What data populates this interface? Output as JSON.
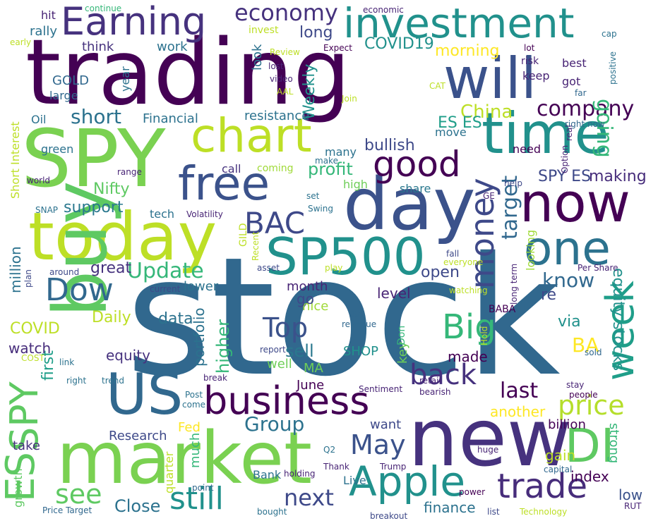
{
  "words": [
    {
      "text": "stock",
      "color": "#31688e"
    },
    {
      "text": "trading",
      "color": "#440154"
    },
    {
      "text": "SPY",
      "color": "#7ad151"
    },
    {
      "text": "day",
      "color": "#3b528b"
    },
    {
      "text": "market",
      "color": "#7ad151"
    },
    {
      "text": "new",
      "color": "#46327e"
    },
    {
      "text": "today",
      "color": "#bddf26"
    },
    {
      "text": "will",
      "color": "#3b528b"
    },
    {
      "text": "time",
      "color": "#21918c"
    },
    {
      "text": "buy",
      "color": "#5ec962"
    },
    {
      "text": "now",
      "color": "#440154"
    },
    {
      "text": "SP500",
      "color": "#21918c"
    },
    {
      "text": "investment",
      "color": "#21918c"
    },
    {
      "text": "free",
      "color": "#3b528b"
    },
    {
      "text": "chart",
      "color": "#bddf26"
    },
    {
      "text": "one",
      "color": "#2c728e"
    },
    {
      "text": "US",
      "color": "#31688e"
    },
    {
      "text": "DI",
      "color": "#5ec962"
    },
    {
      "text": "Earning",
      "color": "#46327e"
    },
    {
      "text": "business",
      "color": "#440154"
    },
    {
      "text": "Apple",
      "color": "#21918c"
    },
    {
      "text": "ES",
      "color": "#5ec962"
    },
    {
      "text": "SPY",
      "color": "#5ec962"
    },
    {
      "text": "good",
      "color": "#440154"
    },
    {
      "text": "trade",
      "color": "#472d7b"
    },
    {
      "text": "week",
      "color": "#1f9e89"
    },
    {
      "text": "Big",
      "color": "#35b779"
    },
    {
      "text": "money",
      "color": "#3e4989"
    },
    {
      "text": "BAC",
      "color": "#3e4989"
    },
    {
      "text": "back",
      "color": "#46327e"
    },
    {
      "text": "still",
      "color": "#21918c"
    },
    {
      "text": "Dow",
      "color": "#31688e"
    },
    {
      "text": "price",
      "color": "#b5de2b"
    },
    {
      "text": "Top",
      "color": "#3b528b"
    },
    {
      "text": "economy",
      "color": "#46327e"
    },
    {
      "text": "company",
      "color": "#440154"
    },
    {
      "text": "going",
      "color": "#35b779"
    },
    {
      "text": "May",
      "color": "#3b528b"
    },
    {
      "text": "last",
      "color": "#440154"
    },
    {
      "text": "Update",
      "color": "#35b779"
    },
    {
      "text": "see",
      "color": "#5ec962"
    },
    {
      "text": "next",
      "color": "#3e4989"
    },
    {
      "text": "target",
      "color": "#31688e"
    },
    {
      "text": "China",
      "color": "#bddf26"
    },
    {
      "text": "short",
      "color": "#2c728e"
    },
    {
      "text": "Group",
      "color": "#2c728e"
    },
    {
      "text": "know",
      "color": "#31688e"
    },
    {
      "text": "BA",
      "color": "#fde725"
    },
    {
      "text": "Close",
      "color": "#2c728e"
    },
    {
      "text": "equity stocks",
      "color": "#21918c"
    },
    {
      "text": "COVID19",
      "color": "#21918c"
    },
    {
      "text": "Weekly",
      "color": "#21918c"
    },
    {
      "text": "bullish",
      "color": "#3e4989"
    },
    {
      "text": "profit",
      "color": "#35b779"
    },
    {
      "text": "support",
      "color": "#2a788e"
    },
    {
      "text": "Nifty",
      "color": "#5ec962"
    },
    {
      "text": "higher",
      "color": "#35b779"
    },
    {
      "text": "long",
      "color": "#3e4989"
    },
    {
      "text": "morning",
      "color": "#fde725"
    },
    {
      "text": "Financial",
      "color": "#2c728e"
    },
    {
      "text": "resistance",
      "color": "#2c728e"
    },
    {
      "text": "ES ES",
      "color": "#1f9e89"
    },
    {
      "text": "SPY ES",
      "color": "#3e4989"
    },
    {
      "text": "making",
      "color": "#472d7b"
    },
    {
      "text": "great",
      "color": "#46327e"
    },
    {
      "text": "lower",
      "color": "#2c728e"
    },
    {
      "text": "data",
      "color": "#2c728e"
    },
    {
      "text": "Daily",
      "color": "#bddf26"
    },
    {
      "text": "COVID",
      "color": "#bddf26"
    },
    {
      "text": "million",
      "color": "#2c728e"
    },
    {
      "text": "watch",
      "color": "#472d7b"
    },
    {
      "text": "equity",
      "color": "#46327e"
    },
    {
      "text": "first",
      "color": "#1f9e89"
    },
    {
      "text": "portfolio",
      "color": "#2c728e"
    },
    {
      "text": "sell",
      "color": "#2a788e"
    },
    {
      "text": "open",
      "color": "#3e4989"
    },
    {
      "text": "re",
      "color": "#3e4989"
    },
    {
      "text": "via",
      "color": "#21918c"
    },
    {
      "text": "level",
      "color": "#482475"
    },
    {
      "text": "month",
      "color": "#482475"
    },
    {
      "text": "nice",
      "color": "#a0da39"
    },
    {
      "text": "go",
      "color": "#3e4989"
    },
    {
      "text": "SHOP",
      "color": "#21918c"
    },
    {
      "text": "made",
      "color": "#440154"
    },
    {
      "text": "key",
      "color": "#6ece58"
    },
    {
      "text": "well",
      "color": "#6ece58"
    },
    {
      "text": "MA",
      "color": "#6ece58"
    },
    {
      "text": "June",
      "color": "#440154"
    },
    {
      "text": "want",
      "color": "#3e4989"
    },
    {
      "text": "another",
      "color": "#fde725"
    },
    {
      "text": "billion",
      "color": "#440154"
    },
    {
      "text": "strong",
      "color": "#35b779"
    },
    {
      "text": "index",
      "color": "#440154"
    },
    {
      "text": "gain",
      "color": "#bddf26"
    },
    {
      "text": "low",
      "color": "#3b528b"
    },
    {
      "text": "finance",
      "color": "#2c728e"
    },
    {
      "text": "Fed",
      "color": "#fde725"
    },
    {
      "text": "much",
      "color": "#35b779"
    },
    {
      "text": "Research",
      "color": "#3e4989"
    },
    {
      "text": "take",
      "color": "#46327e"
    },
    {
      "text": "growth",
      "color": "#5ec962"
    },
    {
      "text": "Bank",
      "color": "#2c728e"
    },
    {
      "text": "Live",
      "color": "#2c728e"
    },
    {
      "text": "quarter",
      "color": "#bddf26"
    },
    {
      "text": "rally",
      "color": "#2c728e"
    },
    {
      "text": "think",
      "color": "#46327e"
    },
    {
      "text": "work",
      "color": "#2c728e"
    },
    {
      "text": "GOLD",
      "color": "#31688e"
    },
    {
      "text": "large",
      "color": "#31688e"
    },
    {
      "text": "year",
      "color": "#2c728e"
    },
    {
      "text": "Oil",
      "color": "#2c728e"
    },
    {
      "text": "green",
      "color": "#2c728e"
    },
    {
      "text": "tech",
      "color": "#2c728e"
    },
    {
      "text": "call",
      "color": "#46327e"
    },
    {
      "text": "coming",
      "color": "#a0da39"
    },
    {
      "text": "high",
      "color": "#6ece58"
    },
    {
      "text": "share",
      "color": "#2a788e"
    },
    {
      "text": "look",
      "color": "#2c728e"
    },
    {
      "text": "need",
      "color": "#440154"
    },
    {
      "text": "best",
      "color": "#482475"
    },
    {
      "text": "got",
      "color": "#482475"
    },
    {
      "text": "keep",
      "color": "#482475"
    },
    {
      "text": "risk",
      "color": "#482475"
    },
    {
      "text": "looking",
      "color": "#a0da39"
    },
    {
      "text": "hit",
      "color": "#482475"
    },
    {
      "text": "continue",
      "color": "#35b779"
    },
    {
      "text": "economic",
      "color": "#482475"
    },
    {
      "text": "invest",
      "color": "#bddf26"
    },
    {
      "text": "Expect",
      "color": "#440154"
    },
    {
      "text": "lot",
      "color": "#440154"
    },
    {
      "text": "early",
      "color": "#bddf26"
    },
    {
      "text": "cap",
      "color": "#2c728e"
    },
    {
      "text": "positive",
      "color": "#2c728e"
    },
    {
      "text": "Review",
      "color": "#bddf26"
    },
    {
      "text": "lost",
      "color": "#482475"
    },
    {
      "text": "video",
      "color": "#482475"
    },
    {
      "text": "AAL",
      "color": "#bddf26"
    },
    {
      "text": "Join",
      "color": "#bddf26"
    },
    {
      "text": "CAT",
      "color": "#bddf26"
    },
    {
      "text": "far",
      "color": "#31688e"
    },
    {
      "text": "right now",
      "color": "#31688e"
    },
    {
      "text": "Short Interest",
      "color": "#bddf26"
    },
    {
      "text": "many",
      "color": "#2c728e"
    },
    {
      "text": "make",
      "color": "#2c728e"
    },
    {
      "text": "move",
      "color": "#2c728e"
    },
    {
      "text": "Option",
      "color": "#482475"
    },
    {
      "text": "real",
      "color": "#482475"
    },
    {
      "text": "world",
      "color": "#482475"
    },
    {
      "text": "range",
      "color": "#482475"
    },
    {
      "text": "Volatility",
      "color": "#482475"
    },
    {
      "text": "SNAP",
      "color": "#2c728e"
    },
    {
      "text": "set",
      "color": "#2c728e"
    },
    {
      "text": "Swing",
      "color": "#2c728e"
    },
    {
      "text": "GE",
      "color": "#482475"
    },
    {
      "text": "help",
      "color": "#3e4989"
    },
    {
      "text": "GILD",
      "color": "#bddf26"
    },
    {
      "text": "Recent",
      "color": "#bddf26"
    },
    {
      "text": "around",
      "color": "#3e4989"
    },
    {
      "text": "asset",
      "color": "#3e4989"
    },
    {
      "text": "everyone",
      "color": "#bddf26"
    },
    {
      "text": "fall",
      "color": "#3e4989"
    },
    {
      "text": "play",
      "color": "#bddf26"
    },
    {
      "text": "plan",
      "color": "#3e4989"
    },
    {
      "text": "current",
      "color": "#3e4989"
    },
    {
      "text": "watching",
      "color": "#bddf26"
    },
    {
      "text": "long term",
      "color": "#482475"
    },
    {
      "text": "Per Share",
      "color": "#482475"
    },
    {
      "text": "BABA",
      "color": "#440154"
    },
    {
      "text": "SA",
      "color": "#31688e"
    },
    {
      "text": "revenue",
      "color": "#31688e"
    },
    {
      "text": "Don",
      "color": "#35b779"
    },
    {
      "text": "Hold",
      "color": "#bddf26"
    },
    {
      "text": "sold",
      "color": "#31688e"
    },
    {
      "text": "report",
      "color": "#3e4989"
    },
    {
      "text": "COST",
      "color": "#bddf26"
    },
    {
      "text": "link",
      "color": "#2c728e"
    },
    {
      "text": "right",
      "color": "#2c728e"
    },
    {
      "text": "trend",
      "color": "#2c728e"
    },
    {
      "text": "break",
      "color": "#482475"
    },
    {
      "text": "Post",
      "color": "#2c728e"
    },
    {
      "text": "come",
      "color": "#2c728e"
    },
    {
      "text": "Sentiment",
      "color": "#482475"
    },
    {
      "text": "retail",
      "color": "#482475"
    },
    {
      "text": "bearish",
      "color": "#482475"
    },
    {
      "text": "stay",
      "color": "#482475"
    },
    {
      "text": "people",
      "color": "#440154"
    },
    {
      "text": "Q2",
      "color": "#2c728e"
    },
    {
      "text": "Trump",
      "color": "#482475"
    },
    {
      "text": "huge",
      "color": "#482475"
    },
    {
      "text": "holding",
      "color": "#482475"
    },
    {
      "text": "Thank",
      "color": "#482475"
    },
    {
      "text": "capital",
      "color": "#31688e"
    },
    {
      "text": "point",
      "color": "#31688e"
    },
    {
      "text": "power",
      "color": "#440154"
    },
    {
      "text": "Price Target",
      "color": "#31688e"
    },
    {
      "text": "bought",
      "color": "#2c728e"
    },
    {
      "text": "breakout",
      "color": "#3e4989"
    },
    {
      "text": "list",
      "color": "#3e4989"
    },
    {
      "text": "Technology",
      "color": "#bddf26"
    },
    {
      "text": "RUT",
      "color": "#482475"
    }
  ]
}
